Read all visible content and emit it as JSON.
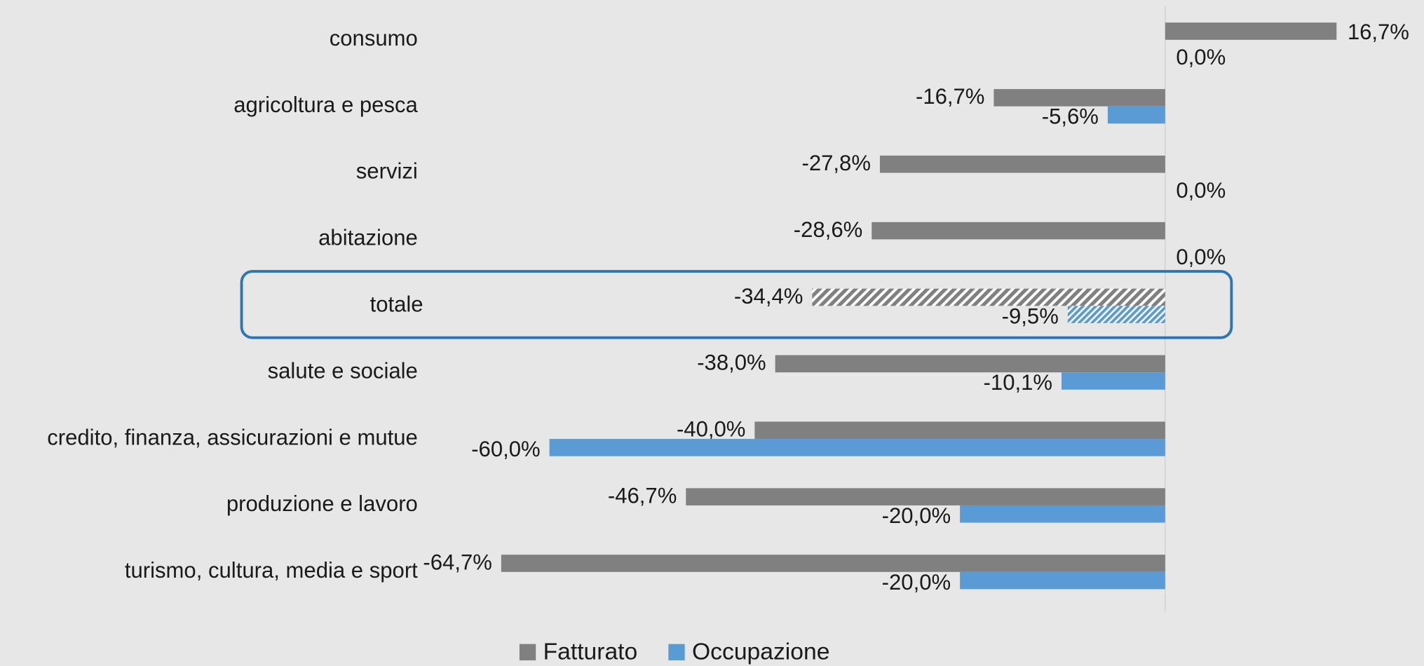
{
  "chart_data": {
    "type": "hbar",
    "categories": [
      "consumo",
      "agricoltura e pesca",
      "servizi",
      "abitazione",
      "totale",
      "salute e sociale",
      "credito, finanza, assicurazioni e mutue",
      "produzione e lavoro",
      "turismo, cultura, media  e sport"
    ],
    "series": [
      {
        "name": "Fatturato",
        "color": "#808080",
        "values": [
          16.7,
          -16.7,
          -27.8,
          -28.6,
          -34.4,
          -38.0,
          -40.0,
          -46.7,
          -64.7
        ],
        "value_labels": [
          "16,7%",
          "-16,7%",
          "-27,8%",
          "-28,6%",
          "-34,4%",
          "-38,0%",
          "-40,0%",
          "-46,7%",
          "-64,7%"
        ]
      },
      {
        "name": "Occupazione",
        "color": "#5b9bd5",
        "values": [
          0.0,
          -5.6,
          0.0,
          0.0,
          -9.5,
          -10.1,
          -60.0,
          -20.0,
          -20.0
        ],
        "value_labels": [
          "0,0%",
          "-5,6%",
          "0,0%",
          "0,0%",
          "-9,5%",
          "-10,1%",
          "-60,0%",
          "-20,0%",
          "-20,0%"
        ]
      }
    ],
    "xlim": [
      -70,
      20
    ],
    "highlight": 4,
    "legend": "bottom"
  }
}
